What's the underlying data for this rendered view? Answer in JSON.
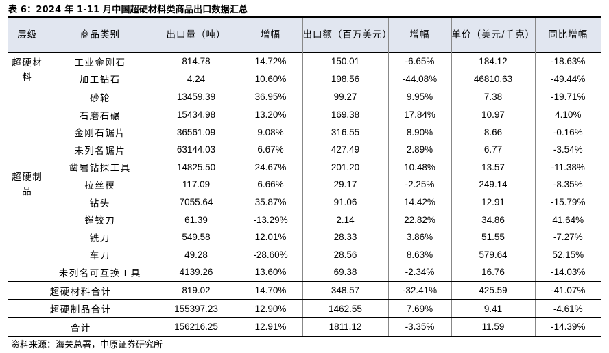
{
  "title": "表 6：2024 年 1-11 月中国超硬材料类商品出口数据汇总",
  "source": "资料来源：海关总署，中原证券研究所",
  "headers": {
    "level": "层级",
    "category": "商品类别",
    "export_volume": "出口量（吨）",
    "growth1": "增幅",
    "export_value": "出口额（百万美元）",
    "growth2": "增幅",
    "unit_price": "单价（美元/千克）",
    "yoy": "同比增幅"
  },
  "groups": {
    "materials": "超硬材料",
    "products": "超硬制品"
  },
  "materials_rows": [
    {
      "name": "工业金刚石",
      "volume": "814.78",
      "g1": "14.72%",
      "value": "150.01",
      "g2": "-6.65%",
      "price": "184.12",
      "yoy": "-18.63%"
    },
    {
      "name": "加工钻石",
      "volume": "4.24",
      "g1": "10.60%",
      "value": "198.56",
      "g2": "-44.08%",
      "price": "46810.63",
      "yoy": "-49.44%"
    }
  ],
  "products_rows": [
    {
      "name": "砂轮",
      "volume": "13459.39",
      "g1": "36.95%",
      "value": "99.27",
      "g2": "9.95%",
      "price": "7.38",
      "yoy": "-19.71%"
    },
    {
      "name": "石磨石碾",
      "volume": "15434.98",
      "g1": "13.20%",
      "value": "169.38",
      "g2": "17.84%",
      "price": "10.97",
      "yoy": "4.10%"
    },
    {
      "name": "金刚石锯片",
      "volume": "36561.09",
      "g1": "9.08%",
      "value": "316.55",
      "g2": "8.90%",
      "price": "8.66",
      "yoy": "-0.16%"
    },
    {
      "name": "未列名锯片",
      "volume": "63144.03",
      "g1": "6.67%",
      "value": "427.49",
      "g2": "2.89%",
      "price": "6.77",
      "yoy": "-3.54%"
    },
    {
      "name": "凿岩钻探工具",
      "volume": "14825.50",
      "g1": "24.67%",
      "value": "201.20",
      "g2": "10.48%",
      "price": "13.57",
      "yoy": "-11.38%"
    },
    {
      "name": "拉丝模",
      "volume": "117.09",
      "g1": "6.66%",
      "value": "29.17",
      "g2": "-2.25%",
      "price": "249.14",
      "yoy": "-8.35%"
    },
    {
      "name": "钻头",
      "volume": "7055.64",
      "g1": "35.87%",
      "value": "91.06",
      "g2": "14.42%",
      "price": "12.91",
      "yoy": "-15.79%"
    },
    {
      "name": "镗铰刀",
      "volume": "61.39",
      "g1": "-13.29%",
      "value": "2.14",
      "g2": "22.82%",
      "price": "34.86",
      "yoy": "41.64%"
    },
    {
      "name": "铣刀",
      "volume": "549.58",
      "g1": "12.01%",
      "value": "28.33",
      "g2": "3.86%",
      "price": "51.55",
      "yoy": "-7.27%"
    },
    {
      "name": "车刀",
      "volume": "49.28",
      "g1": "-28.60%",
      "value": "28.56",
      "g2": "8.63%",
      "price": "579.64",
      "yoy": "52.15%"
    },
    {
      "name": "未列名可互换工具",
      "volume": "4139.26",
      "g1": "13.60%",
      "value": "69.38",
      "g2": "-2.34%",
      "price": "16.76",
      "yoy": "-14.03%"
    }
  ],
  "totals": [
    {
      "name": "超硬材料合计",
      "volume": "819.02",
      "g1": "14.70%",
      "value": "348.57",
      "g2": "-32.41%",
      "price": "425.59",
      "yoy": "-41.07%"
    },
    {
      "name": "超硬制品合计",
      "volume": "155397.23",
      "g1": "12.90%",
      "value": "1462.55",
      "g2": "7.69%",
      "price": "9.41",
      "yoy": "-4.61%"
    },
    {
      "name": "合计",
      "volume": "156216.25",
      "g1": "12.91%",
      "value": "1811.12",
      "g2": "-3.35%",
      "price": "11.59",
      "yoy": "-14.39%"
    }
  ]
}
